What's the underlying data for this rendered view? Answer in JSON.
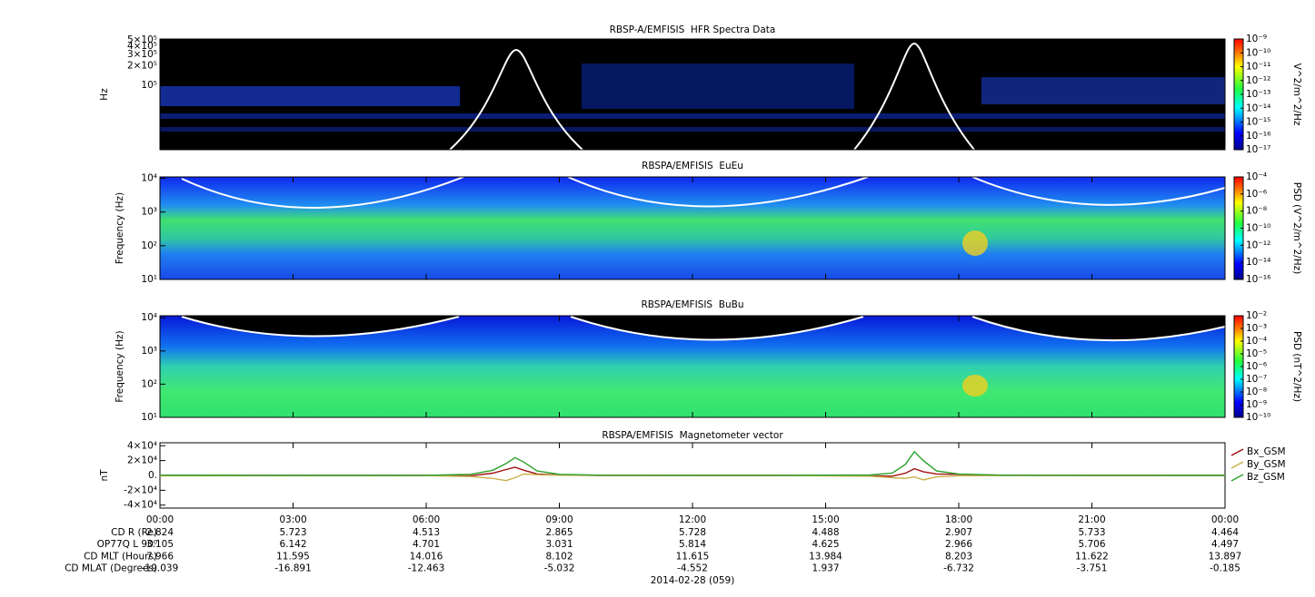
{
  "chart_data": [
    {
      "type": "spectrogram",
      "title": "RBSP-A/EMFISIS  HFR Spectra Data",
      "ylabel": "Hz",
      "log_y": true,
      "ylim": [
        10000,
        520000
      ],
      "yticks": [
        {
          "value": 500000,
          "label": "5×10⁵"
        },
        {
          "value": 400000,
          "label": "4×10⁵"
        },
        {
          "value": 300000,
          "label": "3×10⁵"
        },
        {
          "value": 200000,
          "label": "2×10⁵"
        },
        {
          "value": 100000,
          "label": "10⁵"
        }
      ],
      "colorbar_label": "V^2/m^2/Hz",
      "clim": [
        1e-17,
        1e-09
      ],
      "cticks": [
        {
          "value": 1e-09,
          "label": "10⁻⁹"
        },
        {
          "value": 1e-10,
          "label": "10⁻¹⁰"
        },
        {
          "value": 1e-11,
          "label": "10⁻¹¹"
        },
        {
          "value": 1e-12,
          "label": "10⁻¹²"
        },
        {
          "value": 1e-13,
          "label": "10⁻¹³"
        },
        {
          "value": 1e-14,
          "label": "10⁻¹⁴"
        },
        {
          "value": 1e-15,
          "label": "10⁻¹⁵"
        },
        {
          "value": 1e-16,
          "label": "10⁻¹⁶"
        },
        {
          "value": 1e-17,
          "label": "10⁻¹⁷"
        }
      ]
    },
    {
      "type": "spectrogram",
      "title": "RBSPA/EMFISIS  EuEu",
      "ylabel": "Frequency (Hz)",
      "log_y": true,
      "ylim": [
        10,
        11000
      ],
      "yticks": [
        {
          "value": 10000,
          "label": "10⁴"
        },
        {
          "value": 1000,
          "label": "10³"
        },
        {
          "value": 100,
          "label": "10²"
        },
        {
          "value": 10,
          "label": "10¹"
        }
      ],
      "colorbar_label": "PSD (V^2/m^2/Hz)",
      "clim": [
        1e-16,
        0.0001
      ],
      "cticks": [
        {
          "value": 0.0001,
          "label": "10⁻⁴"
        },
        {
          "value": 1e-06,
          "label": "10⁻⁶"
        },
        {
          "value": 1e-08,
          "label": "10⁻⁸"
        },
        {
          "value": 1e-10,
          "label": "10⁻¹⁰"
        },
        {
          "value": 1e-12,
          "label": "10⁻¹²"
        },
        {
          "value": 1e-14,
          "label": "10⁻¹⁴"
        },
        {
          "value": 1e-16,
          "label": "10⁻¹⁶"
        }
      ]
    },
    {
      "type": "spectrogram",
      "title": "RBSPA/EMFISIS  BuBu",
      "ylabel": "Frequency (Hz)",
      "log_y": true,
      "ylim": [
        10,
        11500
      ],
      "yticks": [
        {
          "value": 10000,
          "label": "10⁴"
        },
        {
          "value": 1000,
          "label": "10³"
        },
        {
          "value": 100,
          "label": "10²"
        },
        {
          "value": 10,
          "label": "10¹"
        }
      ],
      "colorbar_label": "PSD (nT^2/Hz)",
      "clim": [
        1e-10,
        0.01
      ],
      "cticks": [
        {
          "value": 0.01,
          "label": "10⁻²"
        },
        {
          "value": 0.001,
          "label": "10⁻³"
        },
        {
          "value": 0.0001,
          "label": "10⁻⁴"
        },
        {
          "value": 1e-05,
          "label": "10⁻⁵"
        },
        {
          "value": 1e-06,
          "label": "10⁻⁶"
        },
        {
          "value": 1e-07,
          "label": "10⁻⁷"
        },
        {
          "value": 1e-08,
          "label": "10⁻⁸"
        },
        {
          "value": 1e-09,
          "label": "10⁻⁹"
        },
        {
          "value": 1e-10,
          "label": "10⁻¹⁰"
        }
      ]
    },
    {
      "type": "line",
      "title": "RBSPA/EMFISIS  Magnetometer vector",
      "ylabel": "nT",
      "xlabel": "2014-02-28 (059)",
      "xlim": [
        0,
        24
      ],
      "xticks": [
        {
          "value": 0,
          "label": "00:00"
        },
        {
          "value": 3,
          "label": "03:00"
        },
        {
          "value": 6,
          "label": "06:00"
        },
        {
          "value": 9,
          "label": "09:00"
        },
        {
          "value": 12,
          "label": "12:00"
        },
        {
          "value": 15,
          "label": "15:00"
        },
        {
          "value": 18,
          "label": "18:00"
        },
        {
          "value": 21,
          "label": "21:00"
        },
        {
          "value": 24,
          "label": "00:00"
        }
      ],
      "ylim": [
        -44000,
        44000
      ],
      "yticks": [
        {
          "value": 40000,
          "label": "4×10⁴"
        },
        {
          "value": 20000,
          "label": "2×10⁴"
        },
        {
          "value": 0,
          "label": "0."
        },
        {
          "value": -20000,
          "label": "-2×10⁴"
        },
        {
          "value": -40000,
          "label": "-4×10⁴"
        }
      ],
      "x": [
        0,
        2,
        4,
        6,
        7,
        7.5,
        7.8,
        8,
        8.2,
        8.5,
        9,
        10,
        12,
        14,
        16,
        16.5,
        16.8,
        17,
        17.2,
        17.5,
        18,
        19,
        21,
        24
      ],
      "series": [
        {
          "name": "Bx_GSM",
          "color": "#a01010",
          "values": [
            0,
            0,
            0,
            0,
            -500,
            3000,
            8000,
            11000,
            7000,
            2000,
            500,
            0,
            0,
            0,
            -500,
            -1000,
            3000,
            9000,
            5000,
            2000,
            1500,
            300,
            0,
            0
          ]
        },
        {
          "name": "By_GSM",
          "color": "#c8b04a",
          "values": [
            -500,
            -300,
            -200,
            -200,
            -1500,
            -4000,
            -7000,
            -3000,
            2000,
            1000,
            200,
            0,
            0,
            0,
            -1000,
            -3000,
            -4000,
            -2000,
            -6000,
            -2000,
            -500,
            -200,
            0,
            0
          ]
        },
        {
          "name": "Bz_GSM",
          "color": "#2ca02c",
          "values": [
            200,
            100,
            50,
            100,
            1500,
            7000,
            16000,
            24000,
            18000,
            6000,
            1500,
            300,
            100,
            100,
            600,
            3000,
            15000,
            32000,
            20000,
            6000,
            2000,
            300,
            100,
            50
          ]
        }
      ]
    }
  ],
  "ephemeris": {
    "rows": [
      {
        "label": "CD R (Re)",
        "values": [
          2.824,
          5.723,
          4.513,
          2.865,
          5.728,
          4.488,
          2.907,
          5.733,
          4.464
        ]
      },
      {
        "label": "OP77Q L 90⁰",
        "values": [
          3.105,
          6.142,
          4.701,
          3.031,
          5.814,
          4.625,
          2.966,
          5.706,
          4.497
        ]
      },
      {
        "label": "CD MLT (Hours)",
        "values": [
          7.966,
          11.595,
          14.016,
          8.102,
          11.615,
          13.984,
          8.203,
          11.622,
          13.897
        ]
      },
      {
        "label": "CD MLAT (Degrees)",
        "values": [
          -19.039,
          -16.891,
          -12.463,
          -5.032,
          -4.552,
          1.937,
          -6.732,
          -3.751,
          -0.185
        ]
      }
    ]
  }
}
